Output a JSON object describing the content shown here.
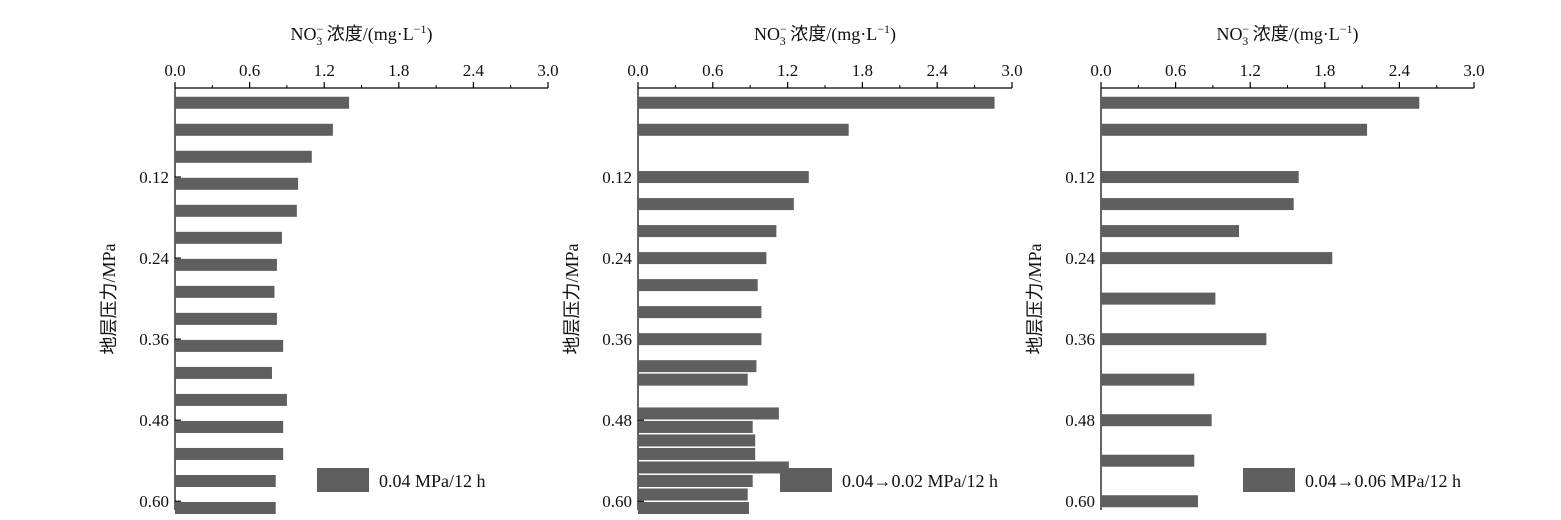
{
  "colors": {
    "bar": "#5f5f5f",
    "axis": "#000000",
    "background": "#ffffff"
  },
  "chart_data": [
    {
      "type": "bar",
      "orientation": "horizontal",
      "xlabel": {
        "main": "NO",
        "sub": "3",
        "sup": "−",
        "rest": " 浓度/(mg·L",
        "unit_sup": "−1",
        "close": ")"
      },
      "ylabel": "地层压力/MPa",
      "xlim": [
        0,
        3.0
      ],
      "xticks": [
        "0.0",
        "0.6",
        "1.2",
        "1.8",
        "2.4",
        "3.0"
      ],
      "ylim": [
        0.0,
        0.61
      ],
      "yticks": [
        "0.12",
        "0.24",
        "0.36",
        "0.48",
        "0.60"
      ],
      "legend": "0.04 MPa/12 h",
      "legend_position": "bottom-right",
      "y": [
        0.01,
        0.05,
        0.09,
        0.13,
        0.17,
        0.21,
        0.25,
        0.29,
        0.33,
        0.37,
        0.41,
        0.45,
        0.49,
        0.53,
        0.57,
        0.61
      ],
      "values": [
        1.4,
        1.27,
        1.1,
        0.99,
        0.98,
        0.86,
        0.82,
        0.8,
        0.82,
        0.87,
        0.78,
        0.9,
        0.87,
        0.87,
        0.81,
        0.81
      ]
    },
    {
      "type": "bar",
      "orientation": "horizontal",
      "xlabel": {
        "main": "NO",
        "sub": "3",
        "sup": "−",
        "rest": " 浓度/(mg·L",
        "unit_sup": "−1",
        "close": ")"
      },
      "ylabel": "地层压力/MPa",
      "xlim": [
        0,
        3.0
      ],
      "xticks": [
        "0.0",
        "0.6",
        "1.2",
        "1.8",
        "2.4",
        "3.0"
      ],
      "ylim": [
        0.0,
        0.61
      ],
      "yticks": [
        "0.12",
        "0.24",
        "0.36",
        "0.48",
        "0.60"
      ],
      "legend": "0.04→0.02 MPa/12 h",
      "legend_position": "bottom-right",
      "y": [
        0.01,
        0.05,
        0.12,
        0.16,
        0.2,
        0.24,
        0.28,
        0.32,
        0.36,
        0.4,
        0.42,
        0.47,
        0.49,
        0.51,
        0.53,
        0.55,
        0.57,
        0.59,
        0.61
      ],
      "values": [
        2.86,
        1.69,
        1.37,
        1.25,
        1.11,
        1.03,
        0.96,
        0.99,
        0.99,
        0.95,
        0.88,
        1.13,
        0.92,
        0.94,
        0.94,
        1.21,
        0.92,
        0.88,
        0.89
      ]
    },
    {
      "type": "bar",
      "orientation": "horizontal",
      "xlabel": {
        "main": "NO",
        "sub": "3",
        "sup": "−",
        "rest": " 浓度/(mg·L",
        "unit_sup": "−1",
        "close": ")"
      },
      "ylabel": "地层压力/MPa",
      "xlim": [
        0,
        3.0
      ],
      "xticks": [
        "0.0",
        "0.6",
        "1.2",
        "1.8",
        "2.4",
        "3.0"
      ],
      "ylim": [
        0.0,
        0.61
      ],
      "yticks": [
        "0.12",
        "0.24",
        "0.36",
        "0.48",
        "0.60"
      ],
      "legend": "0.04→0.06 MPa/12 h",
      "legend_position": "bottom-right",
      "y": [
        0.01,
        0.05,
        0.12,
        0.16,
        0.2,
        0.24,
        0.3,
        0.36,
        0.42,
        0.48,
        0.54,
        0.6
      ],
      "values": [
        2.56,
        2.14,
        1.59,
        1.55,
        1.11,
        1.86,
        0.92,
        1.33,
        0.75,
        0.89,
        0.75,
        0.78
      ]
    }
  ]
}
